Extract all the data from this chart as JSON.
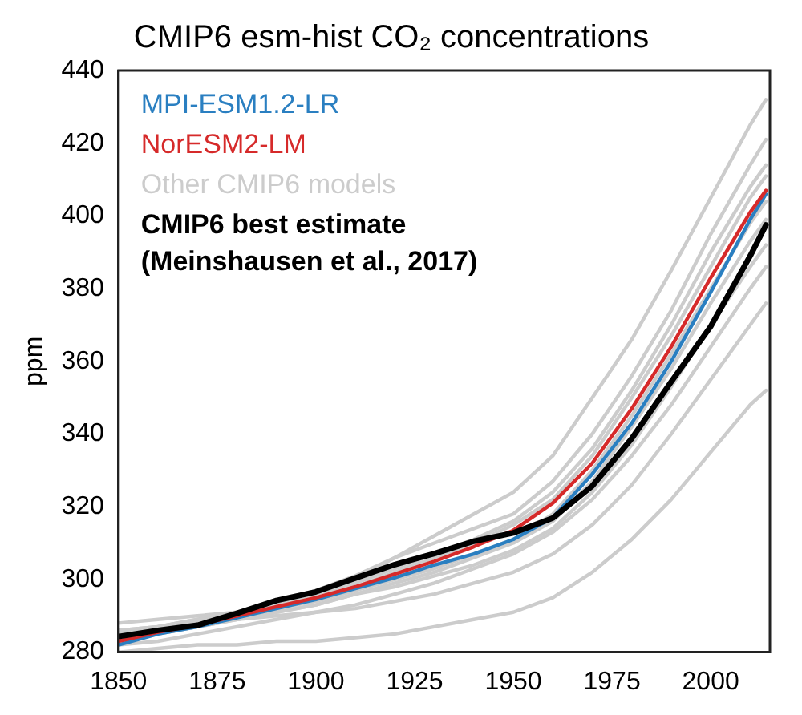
{
  "chart_data": {
    "type": "line",
    "title": "CMIP6 esm-hist CO₂ concentrations",
    "ylabel": "ppm",
    "x": [
      1850,
      1860,
      1870,
      1880,
      1890,
      1900,
      1910,
      1920,
      1930,
      1940,
      1950,
      1960,
      1970,
      1980,
      1990,
      2000,
      2010,
      2014
    ],
    "xlim": [
      1850,
      2015
    ],
    "xticks": [
      1850,
      1875,
      1900,
      1925,
      1950,
      1975,
      2000
    ],
    "ylim": [
      280,
      440
    ],
    "yticks": [
      280,
      300,
      320,
      340,
      360,
      380,
      400,
      420,
      440
    ],
    "grid": false,
    "legend": "top left",
    "marker": "none",
    "line_style": "solid",
    "series": [
      {
        "name": "MPI-ESM1.2-LR",
        "color": "#2a7fc1",
        "values": [
          282,
          285,
          287,
          289.5,
          292,
          294.5,
          297.5,
          300.5,
          304,
          307,
          311,
          317,
          329,
          343,
          360,
          379,
          399,
          406
        ]
      },
      {
        "name": "NorESM2-LM",
        "color": "#d62a2a",
        "values": [
          283,
          285.5,
          287.5,
          290,
          292.5,
          295,
          298,
          301.5,
          305,
          309,
          313.5,
          321,
          332,
          347,
          364,
          383,
          401,
          407
        ]
      },
      {
        "name": "Other CMIP6 models",
        "color": "#cccccc",
        "values": [
          288,
          289,
          290,
          291,
          293,
          296,
          300,
          306,
          312,
          318,
          324,
          334,
          350,
          366,
          385,
          405,
          425,
          432
        ]
      },
      {
        "color": "#cccccc",
        "values": [
          286,
          287,
          289,
          291,
          294,
          297,
          301,
          306,
          310,
          314,
          318,
          327,
          340,
          356,
          374,
          395,
          414,
          421
        ]
      },
      {
        "color": "#cccccc",
        "values": [
          285,
          287,
          289,
          291,
          293,
          296,
          299,
          303,
          307,
          311,
          316,
          324,
          336,
          352,
          370,
          390,
          408,
          414
        ]
      },
      {
        "color": "#cccccc",
        "values": [
          284,
          286,
          288,
          290,
          292,
          295,
          298,
          302,
          306,
          310,
          315,
          322,
          334,
          350,
          367,
          386,
          405,
          411
        ]
      },
      {
        "color": "#cccccc",
        "values": [
          285,
          286,
          288,
          290,
          292,
          294,
          297,
          300,
          303,
          307,
          311,
          318,
          330,
          345,
          362,
          380,
          398,
          404
        ]
      },
      {
        "color": "#cccccc",
        "values": [
          283,
          285,
          287,
          289,
          291,
          293,
          296,
          299,
          302,
          306,
          310,
          316,
          327,
          342,
          358,
          376,
          393,
          399
        ]
      },
      {
        "color": "#cccccc",
        "values": [
          284,
          285,
          287,
          289,
          291,
          293,
          296,
          298,
          301,
          304,
          308,
          314,
          324,
          337,
          353,
          370,
          386,
          392
        ]
      },
      {
        "color": "#cccccc",
        "values": [
          282,
          283,
          285,
          287,
          289,
          291,
          293,
          296,
          299,
          303,
          307,
          313,
          322,
          334,
          348,
          364,
          380,
          386
        ]
      },
      {
        "color": "#cccccc",
        "values": [
          286,
          287,
          288,
          289,
          290,
          291,
          292,
          294,
          296,
          299,
          302,
          307,
          315,
          326,
          340,
          355,
          370,
          376
        ]
      },
      {
        "color": "#cccccc",
        "values": [
          280,
          281,
          282,
          282,
          283,
          283,
          284,
          285,
          287,
          289,
          291,
          295,
          302,
          311,
          322,
          335,
          348,
          352
        ]
      },
      {
        "name": "CMIP6 best estimate\n(Meinshausen et al., 2017)",
        "color": "#000000",
        "values": [
          284.3,
          286.0,
          287.4,
          290.7,
          294.2,
          296.6,
          300.4,
          304.1,
          307.1,
          310.5,
          312.8,
          316.9,
          325.7,
          338.8,
          354.4,
          369.6,
          389.0,
          397.5
        ]
      }
    ]
  }
}
